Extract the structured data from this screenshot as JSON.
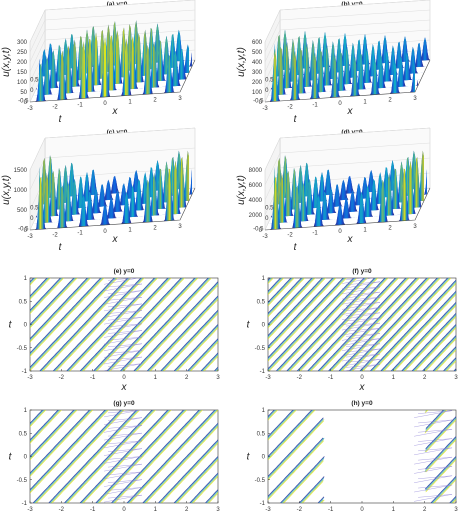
{
  "figure": {
    "panels": [
      {
        "title": "(a) y=0",
        "kind": "surface",
        "zticks": [
          "0",
          "50",
          "100",
          "150",
          "200",
          "250",
          "300"
        ],
        "zlabel": "u(x,y,t)",
        "tlabel": "t",
        "xlabel": "x",
        "tticks": [
          "0.5",
          "0",
          "-0.5"
        ],
        "xticks": [
          "-3",
          "-2",
          "-1",
          "0",
          "1",
          "2",
          "3"
        ],
        "peaks": 14,
        "amp_profile": "high-center"
      },
      {
        "title": "(b) y=0",
        "kind": "surface",
        "zticks": [
          "0",
          "100",
          "200",
          "300",
          "400",
          "500",
          "600"
        ],
        "zlabel": "u(x,y,t)",
        "tlabel": "t",
        "xlabel": "x",
        "tticks": [
          "0.5",
          "0",
          "-0.5"
        ],
        "xticks": [
          "-3",
          "-2",
          "-1",
          "0",
          "1",
          "2",
          "3"
        ],
        "peaks": 15,
        "amp_profile": "left-high"
      },
      {
        "title": "(c) y=0",
        "kind": "surface",
        "zticks": [
          "0",
          "500",
          "1000",
          "1500"
        ],
        "zlabel": "u(x,y,t)",
        "tlabel": "t",
        "xlabel": "x",
        "tticks": [
          "0.5",
          "0",
          "-0.5"
        ],
        "xticks": [
          "-3",
          "-2",
          "-1",
          "0",
          "1",
          "2",
          "3"
        ],
        "peaks": 14,
        "amp_profile": "edges-high"
      },
      {
        "title": "(d) y=0",
        "kind": "surface",
        "zticks": [
          "0",
          "2000",
          "4000",
          "6000",
          "8000"
        ],
        "zlabel": "u(x,y,t)",
        "tlabel": "t",
        "xlabel": "x",
        "tticks": [
          "0.5",
          "0",
          "-0.5"
        ],
        "xticks": [
          "-3",
          "-2",
          "-1",
          "0",
          "1",
          "2",
          "3"
        ],
        "peaks": 14,
        "amp_profile": "edges-high"
      },
      {
        "title": "(e) y=0",
        "kind": "contour",
        "tlabel": "t",
        "xlabel": "x",
        "yticks": [
          "-1",
          "-0.5",
          "0",
          "0.5",
          "1"
        ],
        "xticks": [
          "-3",
          "-2",
          "-1",
          "0",
          "1",
          "2",
          "3"
        ],
        "stripes": 14,
        "gap": null
      },
      {
        "title": "(f) y=0",
        "kind": "contour",
        "tlabel": "t",
        "xlabel": "x",
        "yticks": [
          "-1",
          "-0.5",
          "0",
          "0.5",
          "1"
        ],
        "xticks": [
          "-3",
          "-2",
          "-1",
          "0",
          "1",
          "2",
          "3"
        ],
        "stripes": 18,
        "gap": null
      },
      {
        "title": "(g) y=0",
        "kind": "contour",
        "tlabel": "t",
        "xlabel": "x",
        "yticks": [
          "-1",
          "-0.5",
          "0",
          "0.5",
          "1"
        ],
        "xticks": [
          "-3",
          "-2",
          "-1",
          "0",
          "1",
          "2",
          "3"
        ],
        "stripes": 12,
        "gap": null
      },
      {
        "title": "(h) y=0",
        "kind": "contour",
        "tlabel": "t",
        "xlabel": "x",
        "yticks": [
          "-1",
          "-0.5",
          "0",
          "0.5",
          "1"
        ],
        "xticks": [
          "-3",
          "-2",
          "-1",
          "0",
          "1",
          "2",
          "3"
        ],
        "stripes": 10,
        "gap": [
          -1.2,
          2.0
        ]
      }
    ],
    "colors": {
      "parula_low": "#3e26a8",
      "parula_mid": "#1fa8c9",
      "parula_high": "#f9fb15",
      "frame": "#444444"
    }
  }
}
